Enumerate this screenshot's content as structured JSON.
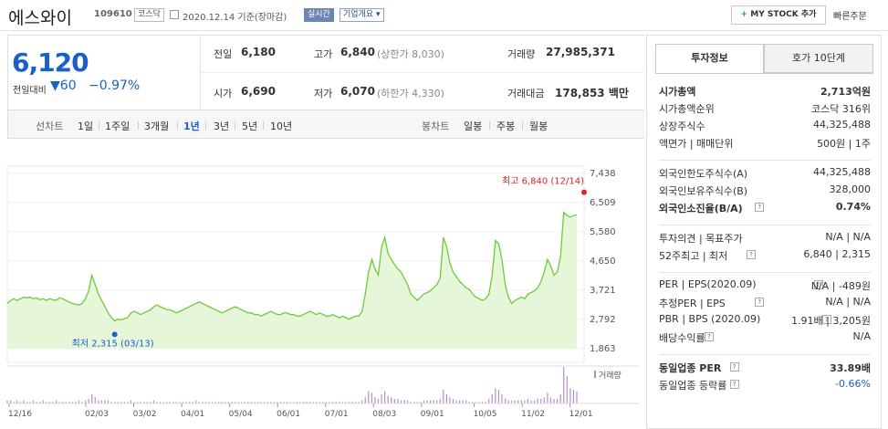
{
  "header": {
    "company_name": "에스와이",
    "code": "109610",
    "market": "코스닥",
    "date_basis": "2020.12.14 기준(장마감)",
    "realtime": "실시간",
    "overview_label": "기업개요",
    "mystock_label": "MY STOCK 추가",
    "quick_order": "빠른주문"
  },
  "price": {
    "current": "6,120",
    "change_label": "전일대비",
    "change_value": "60",
    "change_rate": "−0.97%",
    "prev_label": "전일",
    "prev": "6,180",
    "high_label": "고가",
    "high": "6,840",
    "upper_limit": "(상한가 8,030)",
    "volume_label": "거래량",
    "volume": "27,985,371",
    "open_label": "시가",
    "open": "6,690",
    "low_label": "저가",
    "low": "6,070",
    "lower_limit": "(하한가 4,330)",
    "amount_label": "거래대금",
    "amount": "178,853 백만"
  },
  "period_bar": {
    "line_label": "선차트",
    "periods": [
      "1일",
      "1주일",
      "3개월",
      "1년",
      "3년",
      "5년",
      "10년"
    ],
    "selected": "1년",
    "candle_label": "봉차트",
    "candles": [
      "일봉",
      "주봉",
      "월봉"
    ]
  },
  "chart_data": {
    "type": "area",
    "y_ticks": [
      "7,438",
      "6,509",
      "5,580",
      "4,650",
      "3,721",
      "2,792",
      "1,863"
    ],
    "ylim": [
      1863,
      7438
    ],
    "x_ticks": [
      "12/16",
      "02/03",
      "03/02",
      "04/01",
      "05/04",
      "06/01",
      "07/01",
      "08/03",
      "09/01",
      "10/05",
      "11/02",
      "12/01"
    ],
    "max_label": "최고 6,840 (12/14)",
    "min_label": "최저 2,315 (03/13)",
    "volume_label": "거래량",
    "line_color": "#6dcb3a",
    "fill_color": "#e6f7d9",
    "prices": [
      3300,
      3400,
      3450,
      3400,
      3450,
      3500,
      3480,
      3500,
      3450,
      3480,
      3420,
      3450,
      3400,
      3450,
      3420,
      3400,
      3480,
      3450,
      3400,
      3350,
      3300,
      3280,
      3250,
      3300,
      3450,
      3700,
      4200,
      3900,
      3600,
      3400,
      3200,
      3000,
      2850,
      2750,
      2800,
      2780,
      2820,
      2850,
      3000,
      3050,
      3000,
      2950,
      3000,
      3050,
      3100,
      3200,
      3250,
      3200,
      3150,
      3100,
      3100,
      3050,
      3000,
      3050,
      3100,
      3150,
      3200,
      3250,
      3300,
      3350,
      3300,
      3250,
      3200,
      3150,
      3100,
      3050,
      3000,
      3050,
      3100,
      3150,
      3200,
      3150,
      3100,
      3050,
      3000,
      3000,
      2950,
      2950,
      2900,
      2950,
      3000,
      3050,
      3000,
      2950,
      2950,
      3000,
      3000,
      2950,
      2950,
      2900,
      2900,
      2950,
      3000,
      3050,
      3000,
      2950,
      3000,
      2950,
      2900,
      2900,
      2950,
      2900,
      2850,
      2900,
      2850,
      2800,
      2850,
      2900,
      2900,
      3050,
      3600,
      4300,
      4700,
      4400,
      4200,
      5100,
      5400,
      4900,
      4700,
      4550,
      4400,
      4300,
      4100,
      3900,
      3600,
      3500,
      3400,
      3500,
      3600,
      3650,
      3700,
      3800,
      3900,
      4100,
      5400,
      5100,
      4600,
      4300,
      4150,
      4000,
      3900,
      3800,
      3750,
      3600,
      3500,
      3450,
      3400,
      3450,
      3600,
      4200,
      5300,
      5200,
      4700,
      3900,
      3500,
      3300,
      3400,
      3450,
      3500,
      3450,
      3600,
      3650,
      3700,
      3800,
      4000,
      4300,
      4700,
      4500,
      4200,
      4300,
      4800,
      6200,
      6100,
      6050,
      6100,
      6120
    ],
    "volumes": [
      2,
      2,
      1,
      2,
      1,
      2,
      1,
      1,
      2,
      1,
      1,
      2,
      1,
      1,
      1,
      2,
      1,
      1,
      1,
      1,
      1,
      1,
      2,
      1,
      2,
      3,
      6,
      4,
      2,
      2,
      2,
      2,
      1,
      1,
      1,
      1,
      1,
      1,
      2,
      1,
      1,
      1,
      1,
      1,
      1,
      2,
      1,
      1,
      1,
      1,
      1,
      1,
      1,
      1,
      1,
      1,
      1,
      1,
      2,
      1,
      1,
      1,
      1,
      1,
      1,
      1,
      1,
      1,
      1,
      1,
      1,
      1,
      1,
      1,
      1,
      1,
      1,
      1,
      1,
      1,
      1,
      1,
      1,
      1,
      1,
      1,
      1,
      1,
      1,
      1,
      1,
      1,
      1,
      1,
      1,
      1,
      1,
      1,
      1,
      1,
      1,
      1,
      1,
      1,
      1,
      1,
      1,
      1,
      1,
      2,
      4,
      8,
      7,
      4,
      3,
      6,
      8,
      5,
      4,
      3,
      3,
      2,
      2,
      2,
      1,
      1,
      1,
      1,
      2,
      2,
      2,
      2,
      2,
      3,
      9,
      6,
      4,
      3,
      2,
      2,
      2,
      2,
      1,
      1,
      1,
      1,
      1,
      1,
      3,
      6,
      10,
      9,
      6,
      3,
      2,
      2,
      2,
      2,
      2,
      2,
      3,
      2,
      2,
      3,
      3,
      4,
      7,
      4,
      3,
      3,
      6,
      24,
      18,
      10,
      9,
      8
    ]
  },
  "right": {
    "tab_active": "투자정보",
    "tab_other": "호가 10단계",
    "rows1": [
      {
        "k": "시가총액",
        "v": "2,713억원",
        "bold": true
      },
      {
        "k": "시가총액순위",
        "v": "코스닥 316위"
      },
      {
        "k": "상장주식수",
        "v": "44,325,488"
      },
      {
        "k": "액면가 | 매매단위",
        "v": "500원 | 1주"
      }
    ],
    "rows2": [
      {
        "k": "외국인한도주식수(A)",
        "v": "44,325,488"
      },
      {
        "k": "외국인보유주식수(B)",
        "v": "328,000"
      },
      {
        "k": "외국인소진율(B/A)",
        "v": "0.74%",
        "bold": true
      }
    ],
    "rows3": [
      {
        "k": "투자의견 | 목표주가",
        "v": "N/A | N/A"
      },
      {
        "k": "52주최고 | 최저",
        "v": "6,840 | 2,315"
      }
    ],
    "rows4": [
      {
        "k": "PER | EPS(2020.09)",
        "v": "N/A | -489원"
      },
      {
        "k": "추정PER | EPS",
        "v": "N/A | N/A"
      },
      {
        "k": "PBR | BPS (2020.09)",
        "v": "1.91배 | 3,205원"
      },
      {
        "k": "배당수익률",
        "v": "N/A"
      }
    ],
    "rows5": [
      {
        "k": "동일업종 PER",
        "v": "33.89배",
        "bold": true
      },
      {
        "k": "동일업종 등락률",
        "v": "-0.66%",
        "blue": true
      }
    ]
  }
}
